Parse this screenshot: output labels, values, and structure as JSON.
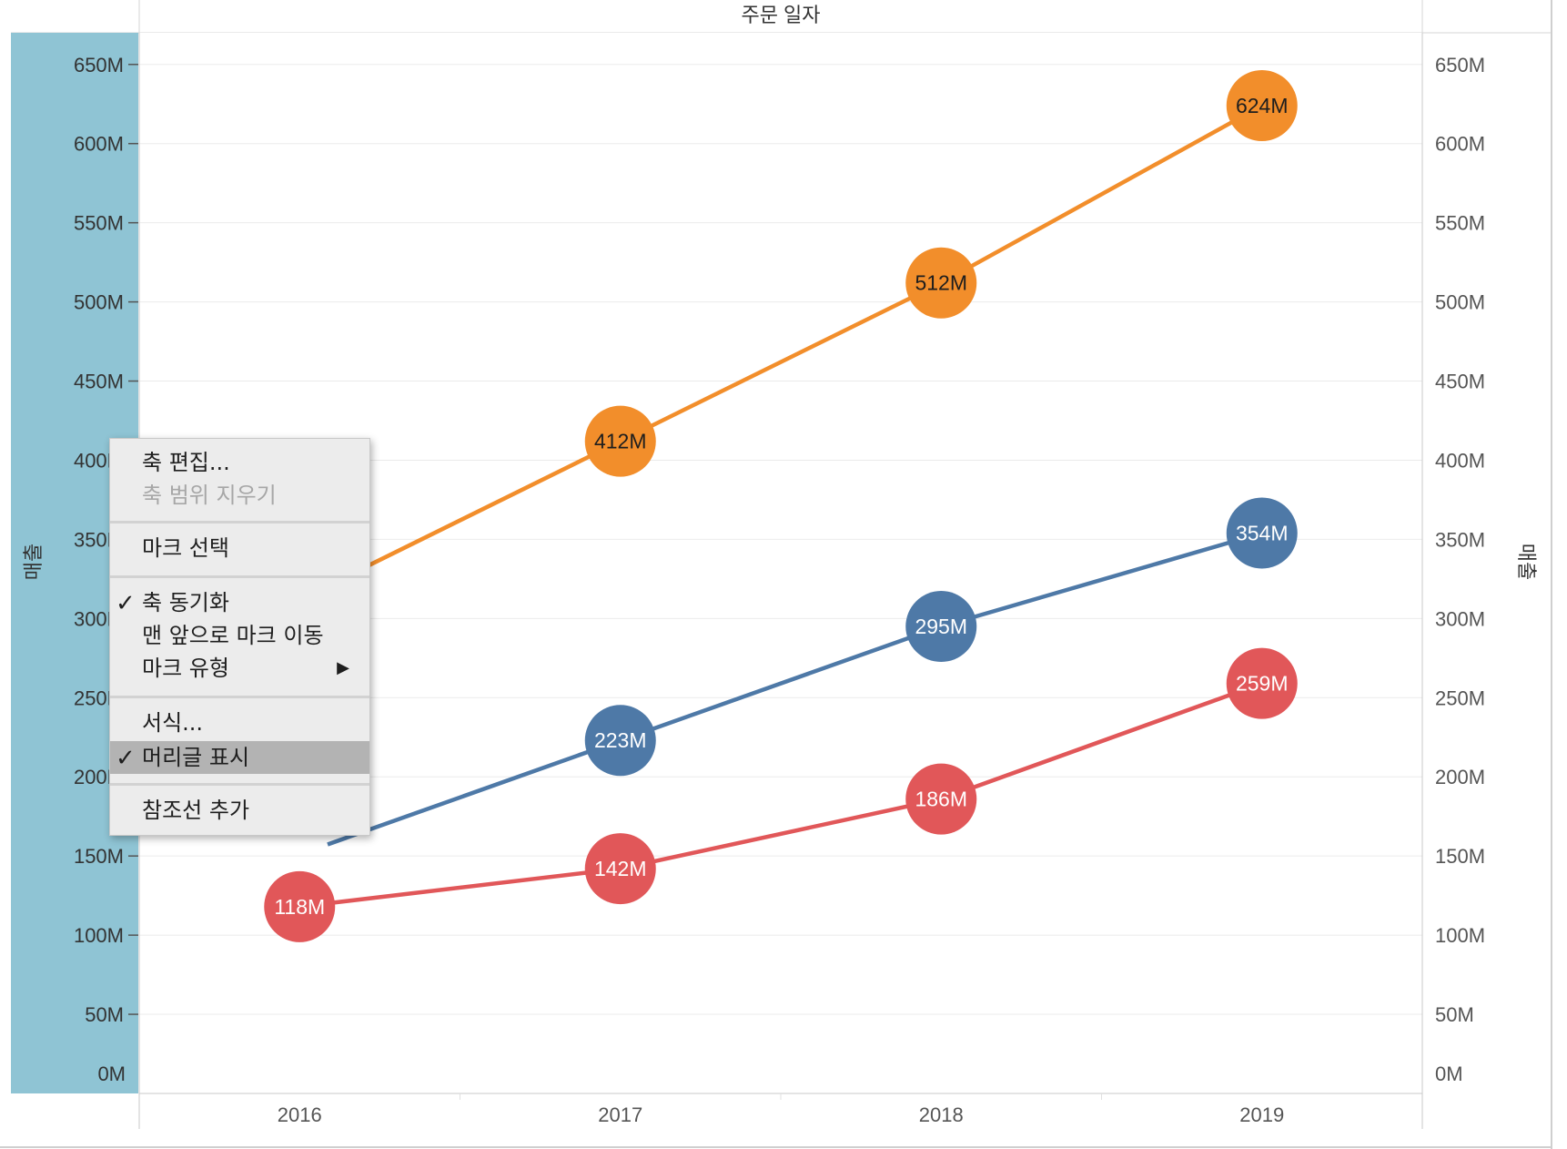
{
  "chart_data": {
    "type": "line",
    "title": "주문 일자",
    "categories": [
      "2016",
      "2017",
      "2018",
      "2019"
    ],
    "series": [
      {
        "color": "#f28e2b",
        "values": [
          null,
          412,
          512,
          624
        ],
        "labels": [
          "",
          "412M",
          "512M",
          "624M"
        ]
      },
      {
        "color": "#4e79a7",
        "values": [
          null,
          223,
          295,
          354
        ],
        "labels": [
          "",
          "223M",
          "295M",
          "354M"
        ]
      },
      {
        "color": "#e15759",
        "values": [
          118,
          142,
          186,
          259
        ],
        "labels": [
          "118M",
          "142M",
          "186M",
          "259M"
        ]
      }
    ],
    "ylabel": "매출",
    "y2label": "매출",
    "ylim": [
      0,
      670
    ],
    "yticks": [
      0,
      50,
      100,
      150,
      200,
      250,
      300,
      350,
      400,
      450,
      500,
      550,
      600,
      650
    ],
    "ytick_labels": [
      "0M",
      "50M",
      "100M",
      "150M",
      "200M",
      "250M",
      "300M",
      "350M",
      "400M",
      "450M",
      "500M",
      "550M",
      "600M",
      "650M"
    ],
    "dual_axis": true,
    "grid": true,
    "left_axis_highlight": "#8fc4d4",
    "label_text_colors": {
      "#f28e2b": "#1e1e1e",
      "#4e79a7": "#ffffff",
      "#e15759": "#ffffff"
    }
  },
  "context_menu": {
    "items": [
      {
        "label": "축 편집...",
        "enabled": true
      },
      {
        "label": "축 범위 지우기",
        "enabled": false
      },
      {
        "label": "마크 선택",
        "enabled": true
      },
      {
        "label": "축 동기화",
        "checked": true
      },
      {
        "label": "맨 앞으로 마크 이동"
      },
      {
        "label": "마크 유형",
        "submenu_arrow": "▶"
      },
      {
        "label": "서식..."
      },
      {
        "label": "머리글 표시",
        "checked": true,
        "selected": true
      },
      {
        "label": "참조선 추가"
      }
    ],
    "check_glyph": "✓"
  }
}
